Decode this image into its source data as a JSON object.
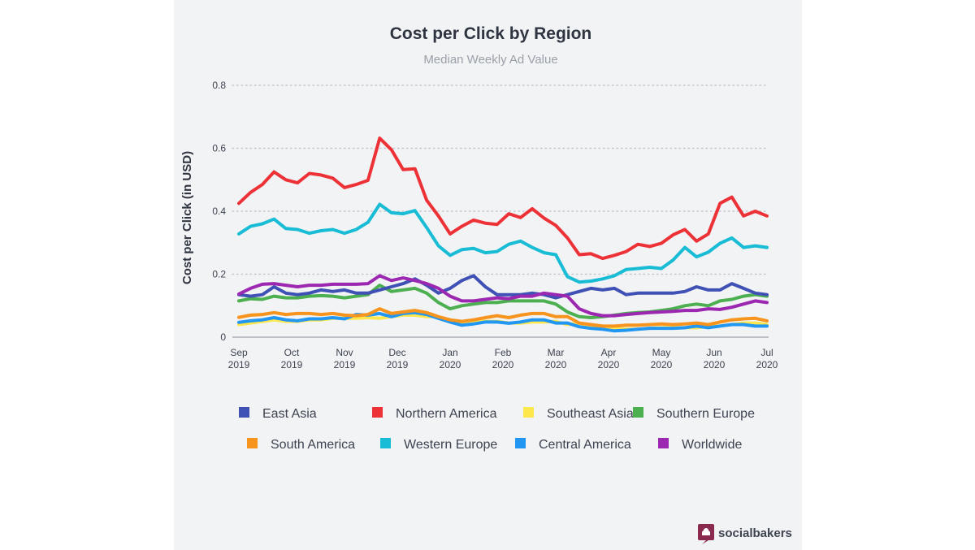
{
  "brand": {
    "name": "socialbakers",
    "color": "#8b2a4f"
  },
  "chart_data": {
    "type": "line",
    "title": "Cost per Click by Region",
    "subtitle": "Median Weekly Ad Value",
    "xlabel": "",
    "ylabel": "Cost per Click (in USD)",
    "ylim": [
      0,
      0.8
    ],
    "yticks": [
      {
        "value": 0,
        "label": "0"
      },
      {
        "value": 0.2,
        "label": "0.2"
      },
      {
        "value": 0.4,
        "label": "0.4"
      },
      {
        "value": 0.6,
        "label": "0.6"
      },
      {
        "value": 0.8,
        "label": "0.8"
      }
    ],
    "grid": true,
    "legend_position": "bottom",
    "weeks": 46,
    "xticks": [
      {
        "week": 0,
        "month": "Sep",
        "year": "2019"
      },
      {
        "week": 4.5,
        "month": "Oct",
        "year": "2019"
      },
      {
        "week": 9,
        "month": "Nov",
        "year": "2019"
      },
      {
        "week": 13.5,
        "month": "Dec",
        "year": "2019"
      },
      {
        "week": 18,
        "month": "Jan",
        "year": "2020"
      },
      {
        "week": 22.5,
        "month": "Feb",
        "year": "2020"
      },
      {
        "week": 27,
        "month": "Mar",
        "year": "2020"
      },
      {
        "week": 31.5,
        "month": "Apr",
        "year": "2020"
      },
      {
        "week": 36,
        "month": "May",
        "year": "2020"
      },
      {
        "week": 40.5,
        "month": "Jun",
        "year": "2020"
      },
      {
        "week": 45,
        "month": "Jul",
        "year": "2020"
      }
    ],
    "series": [
      {
        "name": "Southeast Asia",
        "color": "#fde74c",
        "values": [
          0.04,
          0.045,
          0.05,
          0.055,
          0.05,
          0.05,
          0.055,
          0.055,
          0.06,
          0.06,
          0.06,
          0.062,
          0.06,
          0.065,
          0.07,
          0.07,
          0.065,
          0.065,
          0.05,
          0.045,
          0.05,
          0.05,
          0.05,
          0.045,
          0.045,
          0.048,
          0.048,
          0.05,
          0.04,
          0.045,
          0.03,
          0.028,
          0.027,
          0.025,
          0.025,
          0.028,
          0.03,
          0.03,
          0.03,
          0.03,
          0.035,
          0.035,
          0.04,
          0.045,
          0.045,
          0.04
        ]
      },
      {
        "name": "Central America",
        "color": "#2196f3",
        "values": [
          0.047,
          0.052,
          0.055,
          0.062,
          0.055,
          0.052,
          0.058,
          0.058,
          0.062,
          0.058,
          0.072,
          0.07,
          0.075,
          0.065,
          0.075,
          0.078,
          0.072,
          0.06,
          0.048,
          0.038,
          0.042,
          0.048,
          0.048,
          0.044,
          0.048,
          0.055,
          0.055,
          0.045,
          0.045,
          0.033,
          0.028,
          0.025,
          0.02,
          0.022,
          0.025,
          0.028,
          0.028,
          0.028,
          0.03,
          0.035,
          0.03,
          0.035,
          0.04,
          0.04,
          0.035,
          0.035
        ]
      },
      {
        "name": "South America",
        "color": "#f7941d",
        "values": [
          0.063,
          0.07,
          0.072,
          0.078,
          0.072,
          0.075,
          0.075,
          0.072,
          0.075,
          0.07,
          0.068,
          0.072,
          0.09,
          0.075,
          0.08,
          0.085,
          0.078,
          0.065,
          0.055,
          0.05,
          0.055,
          0.062,
          0.068,
          0.062,
          0.07,
          0.075,
          0.075,
          0.065,
          0.065,
          0.045,
          0.04,
          0.035,
          0.035,
          0.038,
          0.038,
          0.04,
          0.042,
          0.04,
          0.042,
          0.045,
          0.04,
          0.048,
          0.055,
          0.058,
          0.06,
          0.052
        ]
      },
      {
        "name": "Southern Europe",
        "color": "#4caf50",
        "values": [
          0.115,
          0.122,
          0.12,
          0.13,
          0.125,
          0.125,
          0.13,
          0.132,
          0.13,
          0.125,
          0.13,
          0.135,
          0.165,
          0.145,
          0.15,
          0.155,
          0.14,
          0.11,
          0.09,
          0.1,
          0.105,
          0.11,
          0.11,
          0.115,
          0.115,
          0.115,
          0.115,
          0.105,
          0.08,
          0.065,
          0.062,
          0.065,
          0.07,
          0.075,
          0.078,
          0.08,
          0.085,
          0.09,
          0.1,
          0.105,
          0.1,
          0.115,
          0.12,
          0.13,
          0.135,
          0.13
        ]
      },
      {
        "name": "East Asia",
        "color": "#3f51b5",
        "values": [
          0.135,
          0.13,
          0.135,
          0.16,
          0.14,
          0.135,
          0.14,
          0.15,
          0.145,
          0.15,
          0.14,
          0.14,
          0.15,
          0.16,
          0.17,
          0.185,
          0.165,
          0.14,
          0.155,
          0.18,
          0.195,
          0.16,
          0.135,
          0.135,
          0.135,
          0.14,
          0.135,
          0.125,
          0.135,
          0.145,
          0.155,
          0.15,
          0.155,
          0.135,
          0.14,
          0.14,
          0.14,
          0.14,
          0.145,
          0.16,
          0.15,
          0.15,
          0.17,
          0.155,
          0.14,
          0.135
        ]
      },
      {
        "name": "Worldwide",
        "color": "#9c27b0",
        "values": [
          0.137,
          0.155,
          0.168,
          0.17,
          0.165,
          0.16,
          0.165,
          0.165,
          0.168,
          0.168,
          0.168,
          0.17,
          0.195,
          0.18,
          0.188,
          0.18,
          0.17,
          0.155,
          0.13,
          0.115,
          0.115,
          0.12,
          0.125,
          0.122,
          0.13,
          0.13,
          0.14,
          0.135,
          0.13,
          0.09,
          0.075,
          0.068,
          0.068,
          0.072,
          0.075,
          0.078,
          0.08,
          0.082,
          0.085,
          0.085,
          0.09,
          0.088,
          0.095,
          0.105,
          0.115,
          0.11
        ]
      },
      {
        "name": "Western Europe",
        "color": "#18bcd5",
        "values": [
          0.328,
          0.352,
          0.36,
          0.375,
          0.345,
          0.342,
          0.33,
          0.338,
          0.342,
          0.33,
          0.342,
          0.365,
          0.422,
          0.395,
          0.392,
          0.402,
          0.348,
          0.29,
          0.26,
          0.278,
          0.282,
          0.268,
          0.272,
          0.295,
          0.305,
          0.285,
          0.268,
          0.262,
          0.192,
          0.175,
          0.178,
          0.185,
          0.195,
          0.215,
          0.218,
          0.222,
          0.218,
          0.245,
          0.285,
          0.255,
          0.27,
          0.298,
          0.315,
          0.285,
          0.29,
          0.285
        ]
      },
      {
        "name": "Northern America",
        "color": "#ed3237",
        "values": [
          0.425,
          0.46,
          0.485,
          0.525,
          0.5,
          0.49,
          0.52,
          0.515,
          0.505,
          0.475,
          0.485,
          0.498,
          0.632,
          0.595,
          0.532,
          0.535,
          0.435,
          0.385,
          0.328,
          0.352,
          0.372,
          0.362,
          0.358,
          0.392,
          0.38,
          0.408,
          0.378,
          0.355,
          0.315,
          0.262,
          0.265,
          0.25,
          0.26,
          0.272,
          0.295,
          0.288,
          0.298,
          0.325,
          0.342,
          0.305,
          0.328,
          0.425,
          0.445,
          0.385,
          0.4,
          0.385
        ]
      }
    ]
  },
  "legend": {
    "rows": [
      [
        {
          "label": "East Asia",
          "color": "#3f51b5"
        },
        {
          "label": "Northern America",
          "color": "#ed3237"
        },
        {
          "label": "Southeast Asia",
          "color": "#fde74c"
        },
        {
          "label": "Southern Europe",
          "color": "#4caf50"
        }
      ],
      [
        {
          "label": "South America",
          "color": "#f7941d"
        },
        {
          "label": "Western Europe",
          "color": "#18bcd5"
        },
        {
          "label": "Central America",
          "color": "#2196f3"
        },
        {
          "label": "Worldwide",
          "color": "#9c27b0"
        }
      ]
    ]
  }
}
